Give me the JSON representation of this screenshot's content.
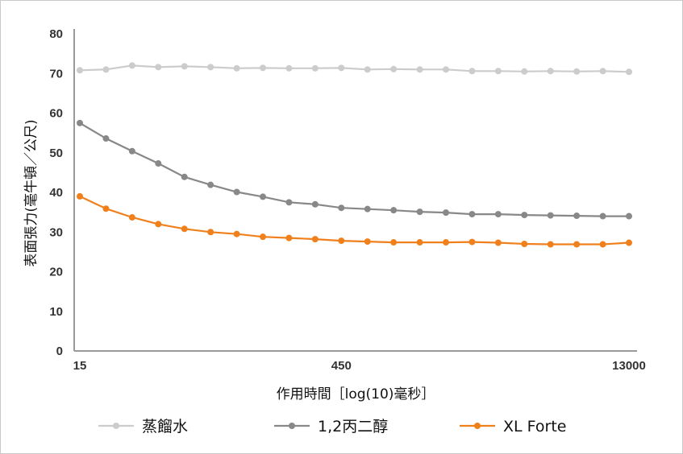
{
  "chart_data": {
    "type": "line",
    "xlabel": "作用時間［log(10)毫秒］",
    "ylabel": "表面張力(毫牛頓／公尺)",
    "ylim": [
      0,
      80
    ],
    "yticks": [
      0,
      10,
      20,
      30,
      40,
      50,
      60,
      70,
      80
    ],
    "xticks": [
      {
        "index": 0,
        "label": "15"
      },
      {
        "index": 10,
        "label": "450"
      },
      {
        "index": 21,
        "label": "13000"
      }
    ],
    "grid": false,
    "legend_position": "bottom",
    "series": [
      {
        "name": "蒸餾水",
        "color": "#cccccc",
        "values": [
          70.8,
          71.0,
          72.0,
          71.6,
          71.8,
          71.6,
          71.3,
          71.4,
          71.3,
          71.3,
          71.4,
          71.0,
          71.1,
          71.0,
          71.0,
          70.6,
          70.6,
          70.5,
          70.6,
          70.5,
          70.6,
          70.4
        ]
      },
      {
        "name": "1,2丙二醇",
        "color": "#888888",
        "values": [
          57.5,
          53.6,
          50.4,
          47.3,
          43.9,
          41.9,
          40.1,
          38.9,
          37.5,
          37.0,
          36.1,
          35.8,
          35.5,
          35.1,
          34.9,
          34.5,
          34.5,
          34.3,
          34.2,
          34.1,
          34.0,
          34.0
        ]
      },
      {
        "name": "XL Forte",
        "color": "#f0801c",
        "values": [
          39.0,
          35.9,
          33.7,
          32.0,
          30.8,
          30.0,
          29.5,
          28.8,
          28.5,
          28.2,
          27.8,
          27.6,
          27.4,
          27.4,
          27.4,
          27.5,
          27.3,
          27.0,
          26.9,
          26.9,
          26.9,
          27.3
        ]
      }
    ]
  }
}
